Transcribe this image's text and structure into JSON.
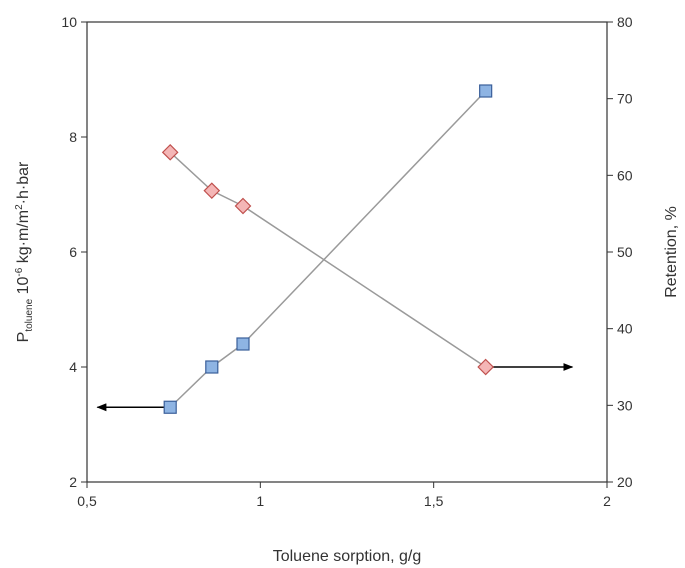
{
  "chart_data": {
    "type": "scatter",
    "xlabel": "Toluene sorption, g/g",
    "ylabel_left": {
      "base": "P",
      "subscript": "toluene",
      "space": " ",
      "coef": "10",
      "exp": "-6",
      "unit_a": " kg·m/m",
      "unit_exp": "2",
      "unit_b": "·h·bar"
    },
    "ylabel_right": "Retention, %",
    "xlim": [
      0.5,
      2
    ],
    "ylim_left": [
      2,
      10
    ],
    "ylim_right": [
      20,
      80
    ],
    "x_ticks": [
      "0,5",
      "1",
      "1,5",
      "2"
    ],
    "x_tick_values": [
      0.5,
      1,
      1.5,
      2
    ],
    "y_left_ticks": [
      "2",
      "4",
      "6",
      "8",
      "10"
    ],
    "y_left_tick_values": [
      2,
      4,
      6,
      8,
      10
    ],
    "y_right_ticks": [
      "20",
      "30",
      "40",
      "50",
      "60",
      "70",
      "80"
    ],
    "y_right_tick_values": [
      20,
      30,
      40,
      50,
      60,
      70,
      80
    ],
    "grid": false,
    "series": [
      {
        "axis": "left",
        "marker": "square",
        "color": "#8EB4E3",
        "edge": "#3A5F9A",
        "x": [
          0.74,
          0.86,
          0.95,
          1.65
        ],
        "y": [
          3.3,
          4.0,
          4.4,
          8.8
        ]
      },
      {
        "axis": "right",
        "marker": "diamond",
        "color": "#F4B6B6",
        "edge": "#C0504D",
        "x": [
          0.74,
          0.86,
          0.95,
          1.65
        ],
        "y": [
          63,
          58,
          56,
          35
        ]
      }
    ],
    "annotations": [
      {
        "type": "arrow",
        "axis": "left",
        "from_x": 0.74,
        "to_x": 0.53,
        "y": 3.3
      },
      {
        "type": "arrow",
        "axis": "right",
        "from_x": 1.65,
        "to_x": 1.9,
        "y": 35
      }
    ]
  }
}
